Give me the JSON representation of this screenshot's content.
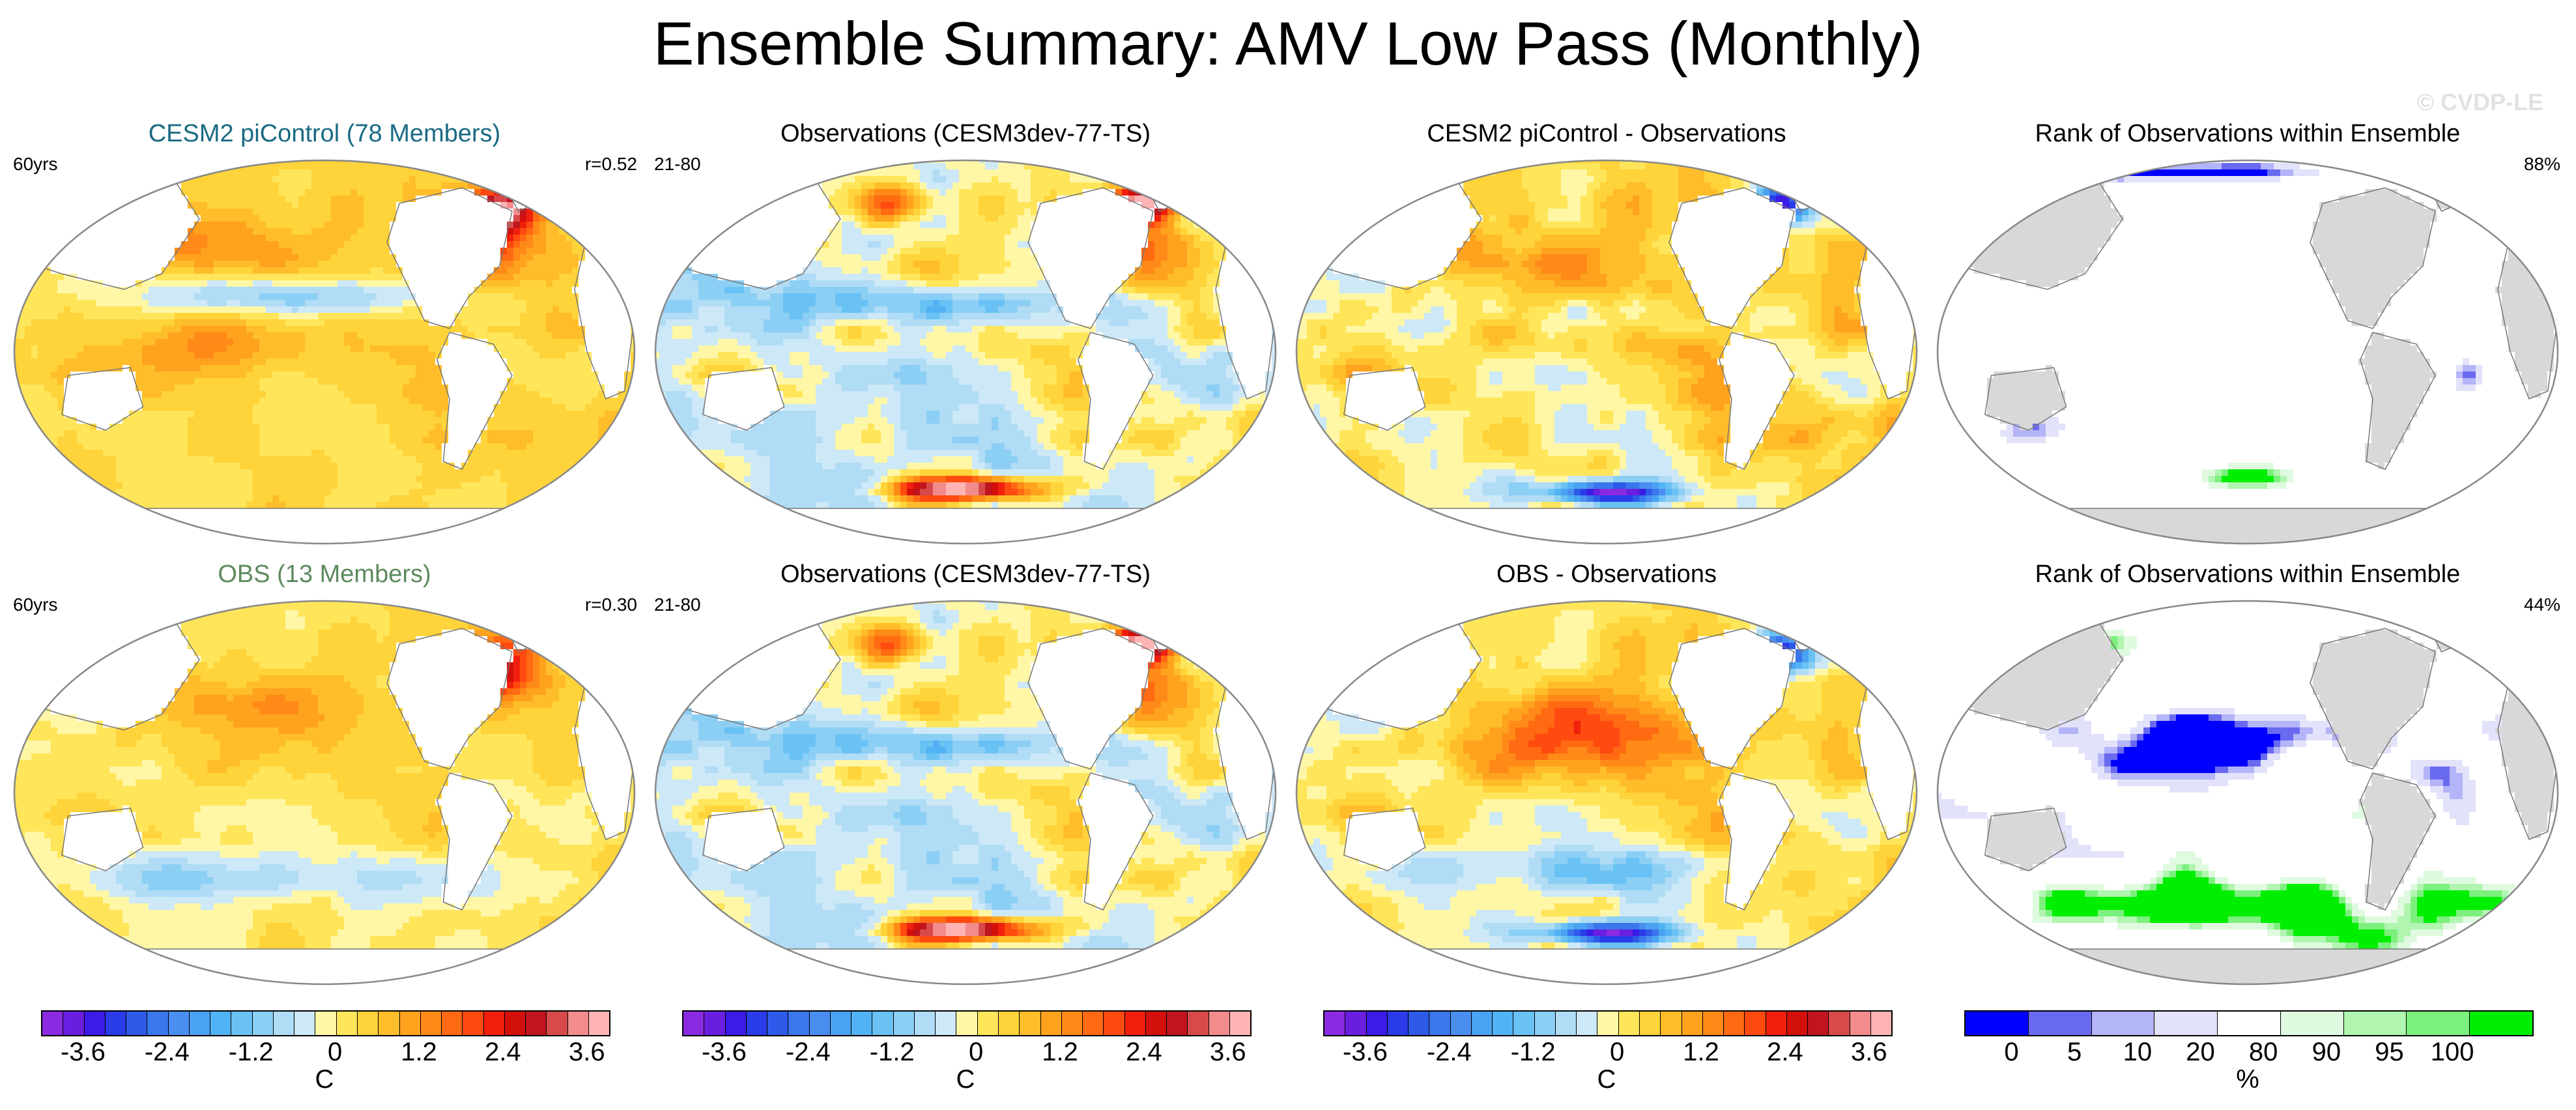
{
  "title": "Ensemble Summary: AMV Low Pass (Monthly)",
  "watermark": "© CVDP-LE",
  "rows": [
    {
      "panels": [
        {
          "title": "CESM2 piControl (78 Members)",
          "title_color": "#1a6a84",
          "left": "60yrs",
          "right": "r=0.52",
          "type": "mean",
          "sign": 1
        },
        {
          "title": "Observations (CESM3dev-77-TS)",
          "title_color": "#000000",
          "left": "21-80",
          "right": "",
          "type": "obs",
          "sign": 1
        },
        {
          "title": "CESM2 piControl - Observations",
          "title_color": "#000000",
          "left": "",
          "right": "",
          "type": "diff",
          "sign": 1
        },
        {
          "title": "Rank of Observations within Ensemble",
          "title_color": "#000000",
          "left": "",
          "right": "88%",
          "type": "rank",
          "sign": 1
        }
      ]
    },
    {
      "panels": [
        {
          "title": "OBS (13 Members)",
          "title_color": "#5e8a5e",
          "left": "60yrs",
          "right": "r=0.30",
          "type": "mean2",
          "sign": 1
        },
        {
          "title": "Observations (CESM3dev-77-TS)",
          "title_color": "#000000",
          "left": "21-80",
          "right": "",
          "type": "obs",
          "sign": 1
        },
        {
          "title": "OBS - Observations",
          "title_color": "#000000",
          "left": "",
          "right": "",
          "type": "diff2",
          "sign": 1
        },
        {
          "title": "Rank of Observations within Ensemble",
          "title_color": "#000000",
          "left": "",
          "right": "44%",
          "type": "rank2",
          "sign": 1
        }
      ]
    }
  ],
  "chart_data": {
    "type": "heatmap",
    "projection": "Robinson-like global, Pacific-centered",
    "temperature_colorbar": {
      "unit": "C",
      "tick_labels": [
        "-3.6",
        "-2.4",
        "-1.2",
        "0",
        "1.2",
        "2.4",
        "3.6"
      ],
      "tick_values": [
        -3.6,
        -2.4,
        -1.2,
        0,
        1.2,
        2.4,
        3.6
      ],
      "levels": [
        -4.2,
        -3.9,
        -3.6,
        -3.3,
        -3.0,
        -2.7,
        -2.4,
        -2.1,
        -1.8,
        -1.5,
        -1.2,
        -0.9,
        -0.6,
        -0.3,
        0,
        0.3,
        0.6,
        0.9,
        1.2,
        1.5,
        1.8,
        2.1,
        2.4,
        2.7,
        3.0,
        3.3,
        3.6,
        3.9,
        4.2
      ],
      "colors": [
        "#8a2be2",
        "#6a1fe0",
        "#3b1be6",
        "#2a3ce8",
        "#2f5ae9",
        "#3a76ec",
        "#4a8ef0",
        "#4aa2f2",
        "#52b3f4",
        "#6ac2f4",
        "#8ccff5",
        "#b0dcf5",
        "#cde8f7",
        "#fff7a6",
        "#ffe55a",
        "#ffd33a",
        "#ffbd2a",
        "#ffa21e",
        "#ff8a17",
        "#ff6a13",
        "#ff4a10",
        "#f0200d",
        "#d4100c",
        "#c0141e",
        "#d84a4a",
        "#f28c8c",
        "#ffb4b4"
      ]
    },
    "rank_colorbar": {
      "unit": "%",
      "tick_labels": [
        "0",
        "5",
        "10",
        "20",
        "80",
        "90",
        "95",
        "100"
      ],
      "colors": [
        "#0000ff",
        "#6a6af0",
        "#b4b4f8",
        "#e2e2fa",
        "#ffffff",
        "#e0fae0",
        "#b0f5b0",
        "#7cf07c",
        "#00ee00"
      ]
    }
  }
}
